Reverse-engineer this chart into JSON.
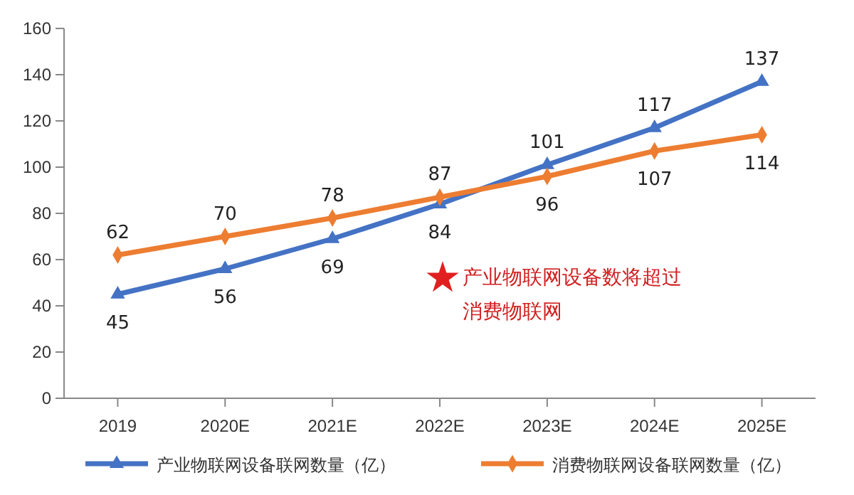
{
  "chart_data": {
    "type": "line",
    "categories": [
      "2019",
      "2020E",
      "2021E",
      "2022E",
      "2023E",
      "2024E",
      "2025E"
    ],
    "series": [
      {
        "name": "产业物联网设备联网数量（亿）",
        "color": "#4472c4",
        "marker": "triangle",
        "values": [
          45,
          56,
          69,
          84,
          101,
          117,
          137
        ]
      },
      {
        "name": "消费物联网设备联网数量（亿）",
        "color": "#ed7d31",
        "marker": "diamond",
        "values": [
          62,
          70,
          78,
          87,
          96,
          107,
          114
        ]
      }
    ],
    "ylim": [
      0,
      160
    ],
    "yticks": [
      0,
      20,
      40,
      60,
      80,
      100,
      120,
      140,
      160
    ],
    "data_labels": true,
    "legend": "bottom",
    "grid": false,
    "annotations": [
      "产业物联网设备数将超过消费物联网"
    ]
  }
}
